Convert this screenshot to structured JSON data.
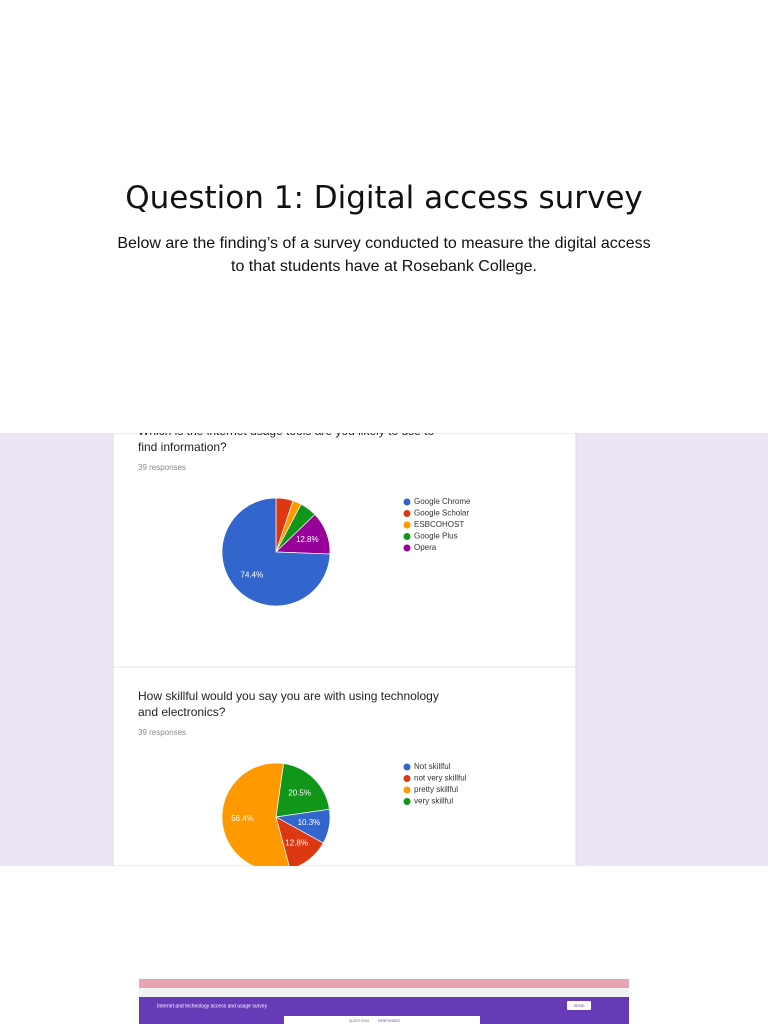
{
  "header": {
    "title": "Question 1: Digital access survey",
    "text": "Below are the finding’s of a survey conducted to measure the digital access to that students have at Rosebank College."
  },
  "chart_data": [
    {
      "type": "pie",
      "title": "Which is the internet usage tools are you likely to use to find information?",
      "subtitle": "39 responses",
      "categories": [
        "Google Chrome",
        "Google Scholar",
        "ESBCOHOST",
        "Google Plus",
        "Opera"
      ],
      "values": [
        74.4,
        5.1,
        2.6,
        5.1,
        12.8
      ],
      "value_labels": [
        "74.4%",
        null,
        null,
        null,
        "12.8%"
      ],
      "colors": [
        "#3366cc",
        "#dc3912",
        "#ff9900",
        "#109618",
        "#990099"
      ]
    },
    {
      "type": "pie",
      "title": "How skillful would you say you are with using technology and electronics?",
      "subtitle": "39 responses",
      "categories": [
        "Not skillful",
        "not very skillful",
        "pretty skillful",
        "very skillful"
      ],
      "values": [
        10.3,
        12.8,
        56.4,
        20.5
      ],
      "value_labels": [
        "10.3%",
        "12.8%",
        "56.4%",
        "20.5%"
      ],
      "colors": [
        "#3366cc",
        "#dc3912",
        "#ff9900",
        "#109618"
      ]
    }
  ],
  "screenshot": {
    "form_title": "Internet and technology access and usage survey",
    "tabs": [
      "QUESTIONS",
      "RESPONSES"
    ],
    "button": "SEND"
  }
}
